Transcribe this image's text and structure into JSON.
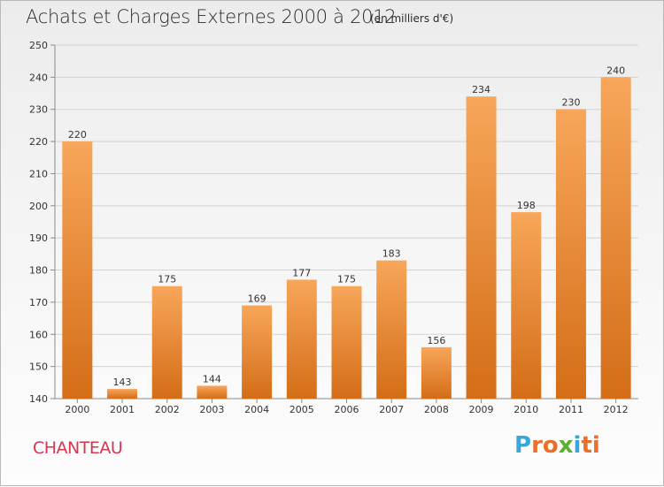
{
  "title": "Achats et Charges Externes 2000 à 2012",
  "subtitle": "(en milliers d'€)",
  "commune": "CHANTEAU",
  "logo": {
    "letters": [
      "P",
      "r",
      "o",
      "x",
      "i",
      "t",
      "i"
    ],
    "colors": [
      "#3aa7d9",
      "#e7702a",
      "#e7702a",
      "#5bb030",
      "#3aa7d9",
      "#e7702a",
      "#e7702a"
    ]
  },
  "colors": {
    "bar_top": "#f7a65a",
    "bar_bottom": "#d46d17",
    "grid": "#d2d2d2",
    "axis": "#8a8a8a"
  },
  "chart_data": {
    "type": "bar",
    "categories": [
      "2000",
      "2001",
      "2002",
      "2003",
      "2004",
      "2005",
      "2006",
      "2007",
      "2008",
      "2009",
      "2010",
      "2011",
      "2012"
    ],
    "values": [
      220,
      143,
      175,
      144,
      169,
      177,
      175,
      183,
      156,
      234,
      198,
      230,
      240
    ],
    "title": "Achats et Charges Externes 2000 à 2012",
    "subtitle": "(en milliers d'€)",
    "ylim": [
      140,
      250
    ],
    "yticks": [
      140,
      150,
      160,
      170,
      180,
      190,
      200,
      210,
      220,
      230,
      240,
      250
    ],
    "grid": true
  }
}
